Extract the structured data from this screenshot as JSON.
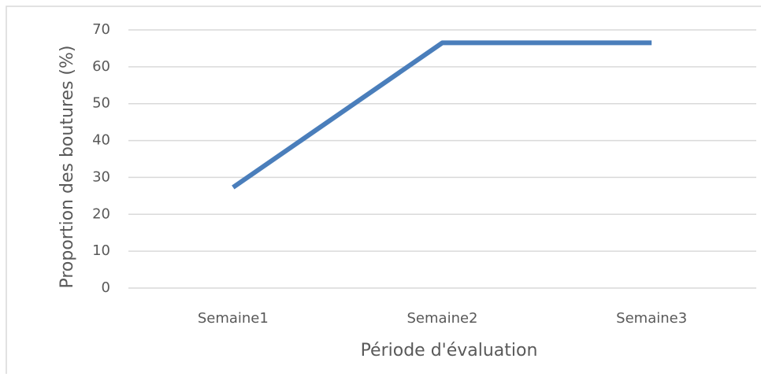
{
  "chart_data": {
    "type": "line",
    "categories": [
      "Semaine1",
      "Semaine2",
      "Semaine3"
    ],
    "series": [
      {
        "name": "Proportion des boutures",
        "color": "#4a7ebb",
        "values": [
          27.3,
          66.5,
          66.5
        ]
      }
    ],
    "ylim": [
      0,
      70
    ],
    "yticks": [
      0,
      10,
      20,
      30,
      40,
      50,
      60,
      70
    ],
    "grid": true,
    "xlabel": "Période d'évaluation",
    "ylabel": "Proportion des boutures (%)"
  }
}
